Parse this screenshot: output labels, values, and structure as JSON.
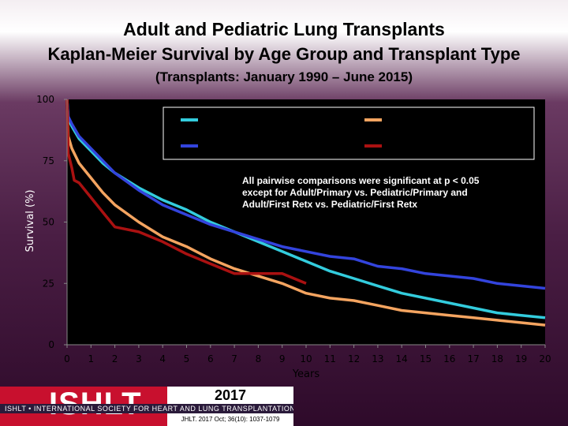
{
  "header": {
    "title": "Adult and Pediatric Lung Transplants",
    "subtitle": "Kaplan-Meier Survival by Age Group and Transplant Type",
    "period": "(Transplants: January 1990 – June 2015)"
  },
  "annotation": {
    "lines": [
      "All pairwise comparisons were significant at p < 0.05",
      "except for Adult/Primary vs. Pediatric/Primary and",
      "Adult/First Retx vs. Pediatric/First Retx"
    ]
  },
  "footer": {
    "logo": "ISHLT",
    "society": "ISHLT • INTERNATIONAL SOCIETY FOR HEART AND LUNG TRANSPLANTATION",
    "year": "2017",
    "citation": "JHLT. 2017 Oct; 36(10): 1037-1079"
  },
  "chart_data": {
    "type": "line",
    "xlabel": "Years",
    "ylabel": "Survival (%)",
    "xlim": [
      0,
      20
    ],
    "ylim": [
      0,
      100
    ],
    "x_ticks": [
      "0",
      "1",
      "2",
      "3",
      "4",
      "5",
      "6",
      "7",
      "8",
      "9",
      "10",
      "11",
      "12",
      "13",
      "14",
      "15",
      "16",
      "17",
      "18",
      "19",
      "20"
    ],
    "y_ticks": [
      "0",
      "25",
      "50",
      "75",
      "100"
    ],
    "plot_background": "#000000",
    "legend": {
      "placement": "top",
      "entries_visible": false
    },
    "series": [
      {
        "color": "#33ccdd",
        "points": [
          [
            0,
            100
          ],
          [
            0.05,
            92
          ],
          [
            0.2,
            89
          ],
          [
            0.5,
            84
          ],
          [
            1,
            79
          ],
          [
            1.5,
            74
          ],
          [
            2,
            70
          ],
          [
            3,
            64
          ],
          [
            4,
            59
          ],
          [
            5,
            55
          ],
          [
            6,
            50
          ],
          [
            7,
            46
          ],
          [
            8,
            42
          ],
          [
            9,
            38
          ],
          [
            10,
            34
          ],
          [
            11,
            30
          ],
          [
            12,
            27
          ],
          [
            13,
            24
          ],
          [
            14,
            21
          ],
          [
            15,
            19
          ],
          [
            16,
            17
          ],
          [
            17,
            15
          ],
          [
            18,
            13
          ],
          [
            19,
            12
          ],
          [
            20,
            11
          ]
        ]
      },
      {
        "color": "#3344dd",
        "points": [
          [
            0,
            100
          ],
          [
            0.05,
            93
          ],
          [
            0.2,
            90
          ],
          [
            0.5,
            85
          ],
          [
            1,
            80
          ],
          [
            1.5,
            75
          ],
          [
            2,
            70
          ],
          [
            3,
            63
          ],
          [
            4,
            57
          ],
          [
            5,
            53
          ],
          [
            6,
            49
          ],
          [
            7,
            46
          ],
          [
            8,
            43
          ],
          [
            9,
            40
          ],
          [
            10,
            38
          ],
          [
            11,
            36
          ],
          [
            12,
            35
          ],
          [
            13,
            32
          ],
          [
            14,
            31
          ],
          [
            15,
            29
          ],
          [
            16,
            28
          ],
          [
            17,
            27
          ],
          [
            18,
            25
          ],
          [
            19,
            24
          ],
          [
            20,
            23
          ]
        ]
      },
      {
        "color": "#f4a460",
        "points": [
          [
            0,
            100
          ],
          [
            0.05,
            85
          ],
          [
            0.2,
            80
          ],
          [
            0.5,
            74
          ],
          [
            1,
            68
          ],
          [
            1.5,
            62
          ],
          [
            2,
            57
          ],
          [
            3,
            50
          ],
          [
            4,
            44
          ],
          [
            5,
            40
          ],
          [
            6,
            35
          ],
          [
            7,
            31
          ],
          [
            8,
            28
          ],
          [
            9,
            25
          ],
          [
            10,
            21
          ],
          [
            11,
            19
          ],
          [
            12,
            18
          ],
          [
            13,
            16
          ],
          [
            14,
            14
          ],
          [
            15,
            13
          ],
          [
            16,
            12
          ],
          [
            17,
            11
          ],
          [
            18,
            10
          ],
          [
            19,
            9
          ],
          [
            20,
            8
          ]
        ]
      },
      {
        "color": "#aa1111",
        "points": [
          [
            0,
            100
          ],
          [
            0.05,
            78
          ],
          [
            0.2,
            72
          ],
          [
            0.3,
            67
          ],
          [
            0.5,
            66
          ],
          [
            1,
            60
          ],
          [
            1.5,
            54
          ],
          [
            2,
            48
          ],
          [
            3,
            46
          ],
          [
            4,
            42
          ],
          [
            5,
            37
          ],
          [
            6,
            33
          ],
          [
            7,
            29
          ],
          [
            8,
            29
          ],
          [
            9,
            29
          ],
          [
            10,
            25
          ]
        ]
      }
    ]
  }
}
